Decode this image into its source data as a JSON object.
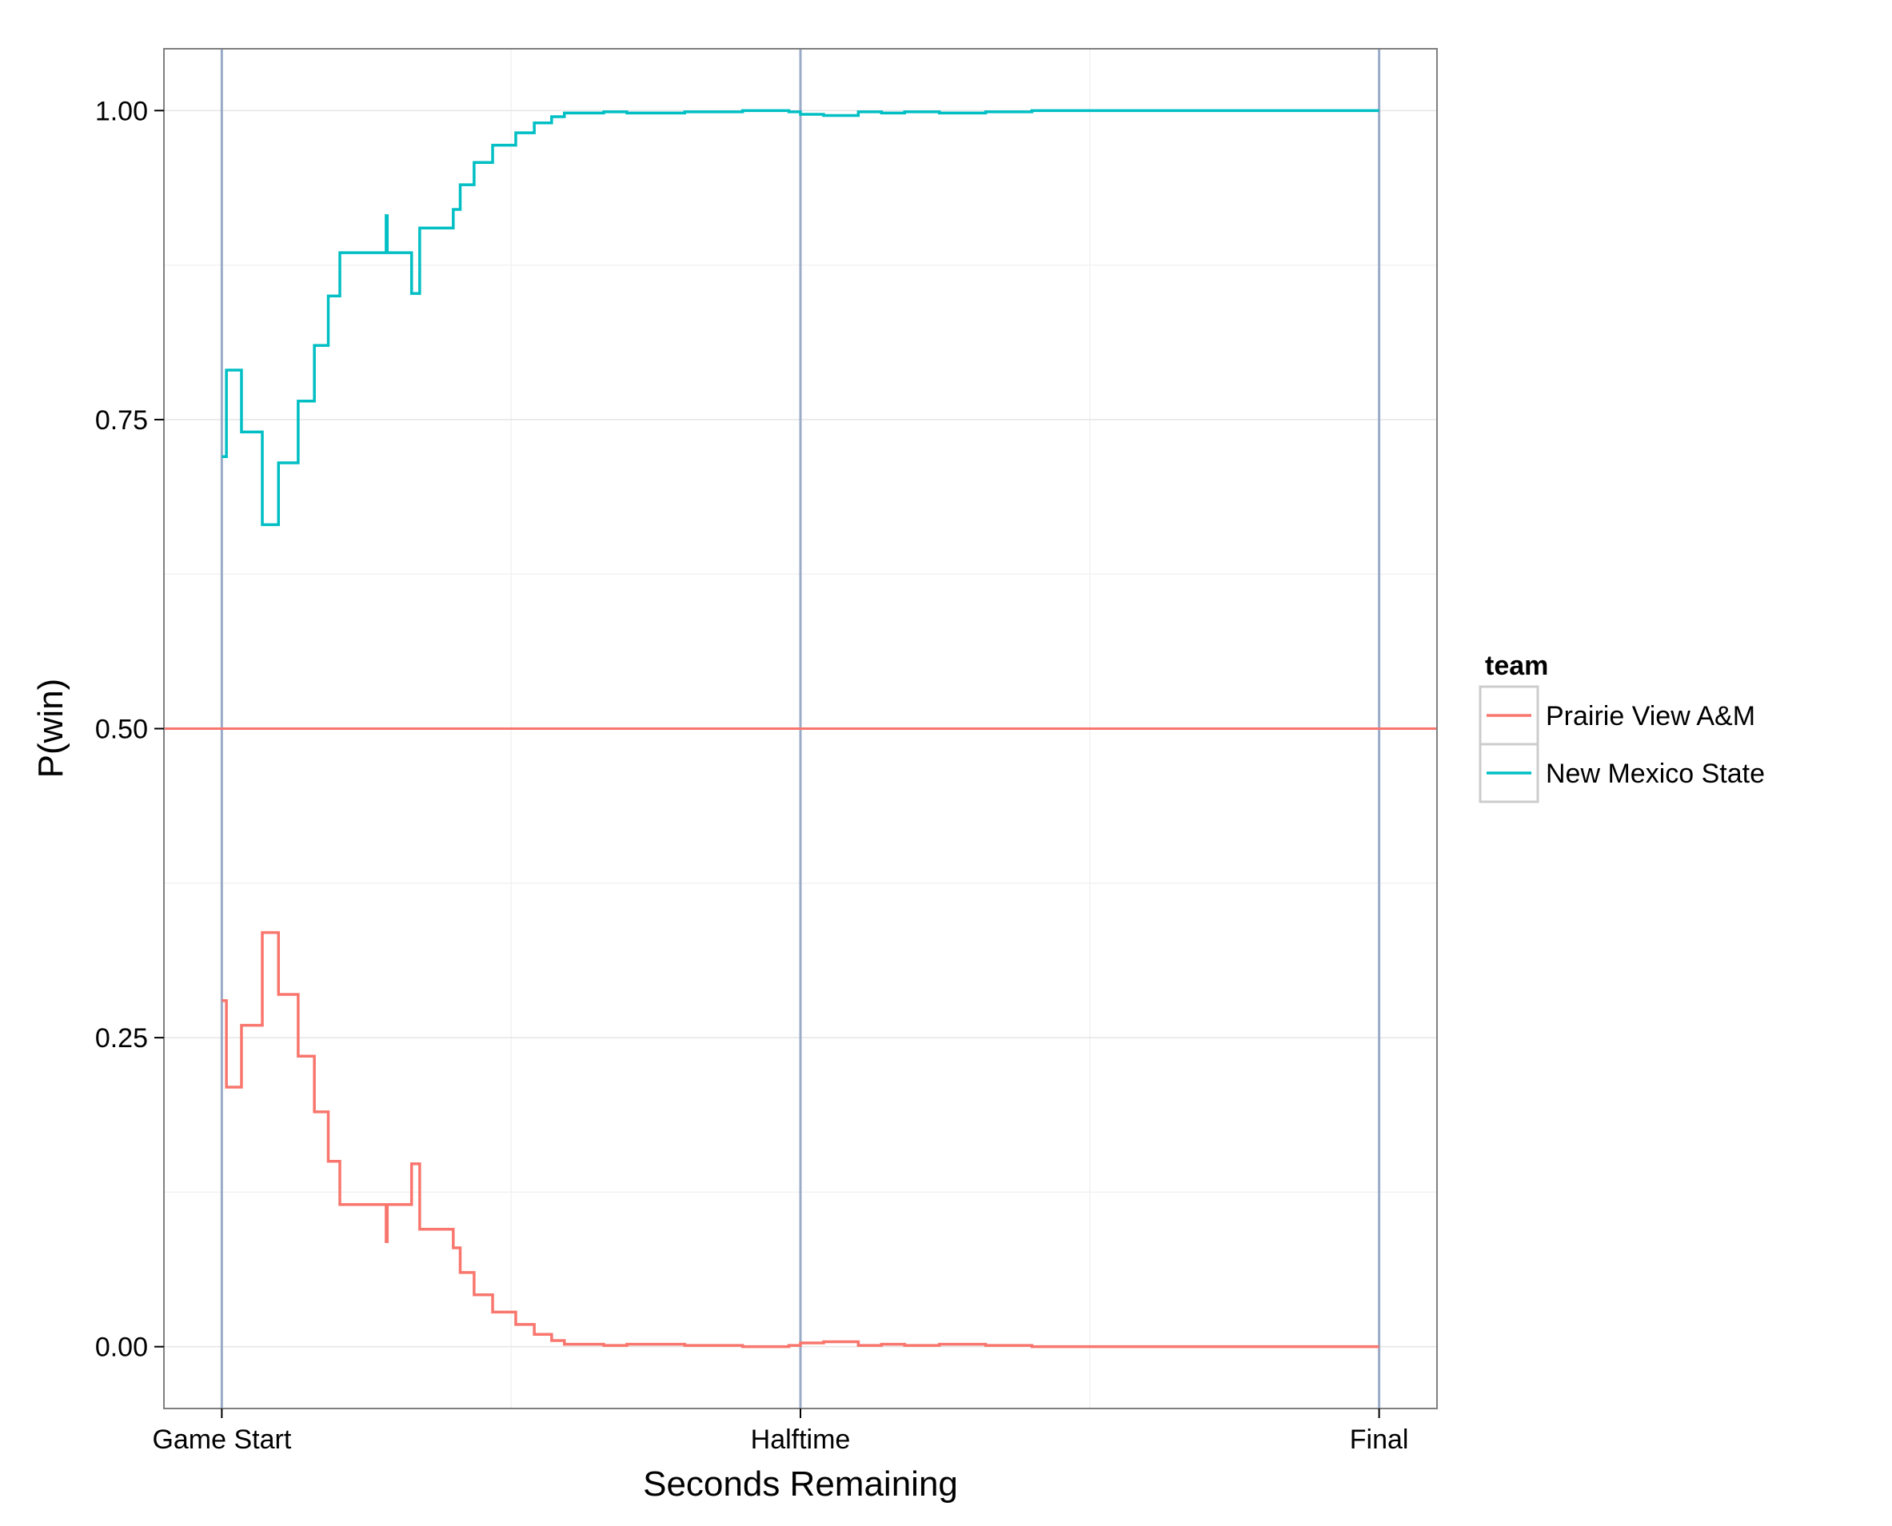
{
  "chart_data": {
    "type": "line",
    "title": "",
    "xlabel": "Seconds Remaining",
    "ylabel": "P(win)",
    "xlim": [
      -0.05,
      1.05
    ],
    "ylim": [
      -0.05,
      1.05
    ],
    "x_ticks": [
      {
        "value": 0,
        "label": "Game Start"
      },
      {
        "value": 0.5,
        "label": "Halftime"
      },
      {
        "value": 1,
        "label": "Final"
      }
    ],
    "y_ticks": [
      {
        "value": 0,
        "label": "0.00"
      },
      {
        "value": 0.25,
        "label": "0.25"
      },
      {
        "value": 0.5,
        "label": "0.50"
      },
      {
        "value": 0.75,
        "label": "0.75"
      },
      {
        "value": 1,
        "label": "1.00"
      }
    ],
    "vertical_lines": [
      0,
      0.5,
      1
    ],
    "vertical_line_color": "#9aabc8",
    "hline": {
      "value": 0.5,
      "color": "#F8766D"
    },
    "grid": true,
    "legend": {
      "title": "team",
      "position": "right"
    },
    "series": [
      {
        "name": "Prairie View A&M",
        "color": "#F8766D",
        "step": true,
        "x": [
          0,
          0.004,
          0.005,
          0.017,
          0.035,
          0.049,
          0.066,
          0.08,
          0.092,
          0.102,
          0.111,
          0.142,
          0.143,
          0.149,
          0.164,
          0.171,
          0.2,
          0.2,
          0.206,
          0.218,
          0.224,
          0.234,
          0.254,
          0.27,
          0.285,
          0.296,
          0.31,
          0.33,
          0.35,
          0.4,
          0.45,
          0.49,
          0.5,
          0.52,
          0.55,
          0.57,
          0.59,
          0.62,
          0.66,
          0.7,
          0.75,
          1.0
        ],
        "y": [
          0.28,
          0.21,
          0.21,
          0.26,
          0.335,
          0.285,
          0.235,
          0.19,
          0.15,
          0.115,
          0.115,
          0.085,
          0.115,
          0.115,
          0.148,
          0.095,
          0.095,
          0.08,
          0.06,
          0.042,
          0.042,
          0.028,
          0.018,
          0.01,
          0.005,
          0.002,
          0.002,
          0.001,
          0.002,
          0.001,
          0.0,
          0.001,
          0.003,
          0.004,
          0.001,
          0.002,
          0.001,
          0.002,
          0.001,
          0.0,
          0.0,
          0.0
        ]
      },
      {
        "name": "New Mexico State",
        "color": "#00BFC4",
        "step": true,
        "x": [
          0,
          0.004,
          0.005,
          0.017,
          0.035,
          0.049,
          0.066,
          0.08,
          0.092,
          0.102,
          0.111,
          0.142,
          0.143,
          0.149,
          0.164,
          0.171,
          0.2,
          0.2,
          0.206,
          0.218,
          0.224,
          0.234,
          0.254,
          0.27,
          0.285,
          0.296,
          0.31,
          0.33,
          0.35,
          0.4,
          0.45,
          0.49,
          0.5,
          0.52,
          0.55,
          0.57,
          0.59,
          0.62,
          0.66,
          0.7,
          0.75,
          1.0
        ],
        "y": [
          0.72,
          0.79,
          0.79,
          0.74,
          0.665,
          0.715,
          0.765,
          0.81,
          0.85,
          0.885,
          0.885,
          0.915,
          0.885,
          0.885,
          0.852,
          0.905,
          0.905,
          0.92,
          0.94,
          0.958,
          0.958,
          0.972,
          0.982,
          0.99,
          0.995,
          0.998,
          0.998,
          0.999,
          0.998,
          0.999,
          1.0,
          0.999,
          0.997,
          0.996,
          0.999,
          0.998,
          0.999,
          0.998,
          0.999,
          1.0,
          1.0,
          1.0
        ]
      }
    ]
  }
}
